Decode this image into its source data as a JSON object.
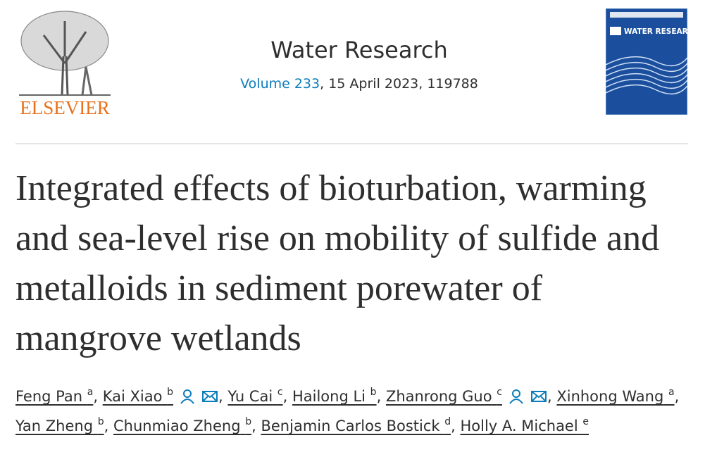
{
  "header": {
    "publisher": "ELSEVIER",
    "journal": "Water Research",
    "volume": "Volume 233",
    "issue_info": ", 15 April 2023, 119788",
    "cover_title": "WATER RESEARCH"
  },
  "title": "Integrated effects of bioturbation, warming and sea-level rise on mobility of sulfide and metalloids in sediment porewater of mangrove wetlands",
  "separator": ",",
  "authors": [
    {
      "name": "Feng Pan",
      "affiliation": "a",
      "contact": false
    },
    {
      "name": "Kai Xiao",
      "affiliation": "b",
      "contact": true
    },
    {
      "name": "Yu Cai",
      "affiliation": "c",
      "contact": false
    },
    {
      "name": "Hailong Li",
      "affiliation": "b",
      "contact": false
    },
    {
      "name": "Zhanrong Guo",
      "affiliation": "c",
      "contact": true
    },
    {
      "name": "Xinhong Wang",
      "affiliation": "a",
      "contact": false
    },
    {
      "name": "Yan Zheng",
      "affiliation": "b",
      "contact": false
    },
    {
      "name": "Chunmiao Zheng",
      "affiliation": "b",
      "contact": false
    },
    {
      "name": "Benjamin Carlos Bostick",
      "affiliation": "d",
      "contact": false
    },
    {
      "name": "Holly A. Michael",
      "affiliation": "e",
      "contact": false
    }
  ]
}
